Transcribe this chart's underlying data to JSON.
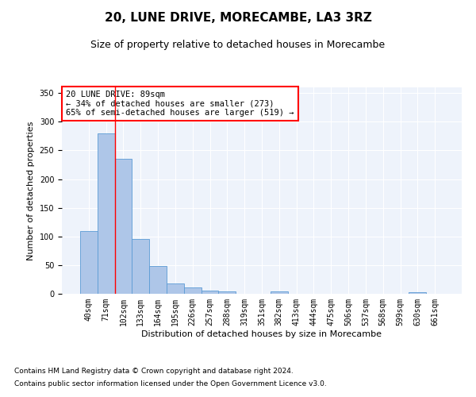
{
  "title": "20, LUNE DRIVE, MORECAMBE, LA3 3RZ",
  "subtitle": "Size of property relative to detached houses in Morecambe",
  "xlabel": "Distribution of detached houses by size in Morecambe",
  "ylabel": "Number of detached properties",
  "bar_values": [
    110,
    280,
    235,
    95,
    49,
    18,
    11,
    5,
    4,
    0,
    0,
    4,
    0,
    0,
    0,
    0,
    0,
    0,
    0,
    3,
    0
  ],
  "bar_labels": [
    "40sqm",
    "71sqm",
    "102sqm",
    "133sqm",
    "164sqm",
    "195sqm",
    "226sqm",
    "257sqm",
    "288sqm",
    "319sqm",
    "351sqm",
    "382sqm",
    "413sqm",
    "444sqm",
    "475sqm",
    "506sqm",
    "537sqm",
    "568sqm",
    "599sqm",
    "630sqm",
    "661sqm"
  ],
  "bar_color": "#aec6e8",
  "bar_edge_color": "#5b9bd5",
  "background_color": "#eef3fb",
  "grid_color": "#ffffff",
  "annotation_box_text": "20 LUNE DRIVE: 89sqm\n← 34% of detached houses are smaller (273)\n65% of semi-detached houses are larger (519) →",
  "annotation_box_color": "white",
  "annotation_box_edge_color": "red",
  "vline_x": 1.5,
  "vline_color": "red",
  "ylim": [
    0,
    360
  ],
  "yticks": [
    0,
    50,
    100,
    150,
    200,
    250,
    300,
    350
  ],
  "footnote1": "Contains HM Land Registry data © Crown copyright and database right 2024.",
  "footnote2": "Contains public sector information licensed under the Open Government Licence v3.0.",
  "title_fontsize": 11,
  "subtitle_fontsize": 9,
  "annotation_fontsize": 7.5,
  "tick_fontsize": 7,
  "ylabel_fontsize": 8,
  "xlabel_fontsize": 8
}
